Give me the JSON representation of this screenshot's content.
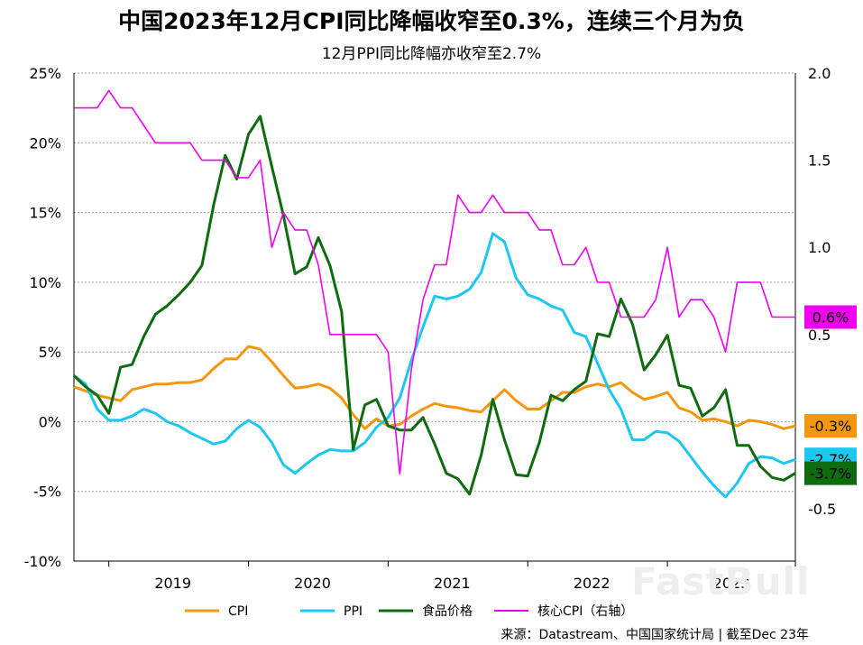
{
  "title": "中国2023年12月CPI同比降幅收窄至0.3%，连续三个月为负",
  "subtitle": "12月PPI同比降幅亦收窄至2.7%",
  "source": "来源：Datastream、中国国家统计局 | 截至Dec 23年",
  "watermark": "FastBull",
  "chart_data": {
    "type": "line",
    "x": [
      "2018-10",
      "2018-11",
      "2018-12",
      "2019-01",
      "2019-02",
      "2019-03",
      "2019-04",
      "2019-05",
      "2019-06",
      "2019-07",
      "2019-08",
      "2019-09",
      "2019-10",
      "2019-11",
      "2019-12",
      "2020-01",
      "2020-02",
      "2020-03",
      "2020-04",
      "2020-05",
      "2020-06",
      "2020-07",
      "2020-08",
      "2020-09",
      "2020-10",
      "2020-11",
      "2020-12",
      "2021-01",
      "2021-02",
      "2021-03",
      "2021-04",
      "2021-05",
      "2021-06",
      "2021-07",
      "2021-08",
      "2021-09",
      "2021-10",
      "2021-11",
      "2021-12",
      "2022-01",
      "2022-02",
      "2022-03",
      "2022-04",
      "2022-05",
      "2022-06",
      "2022-07",
      "2022-08",
      "2022-09",
      "2022-10",
      "2022-11",
      "2022-12",
      "2023-01",
      "2023-02",
      "2023-03",
      "2023-04",
      "2023-05",
      "2023-06",
      "2023-07",
      "2023-08",
      "2023-09",
      "2023-10",
      "2023-11",
      "2023-12"
    ],
    "x_tick_labels": [
      "2019",
      "2020",
      "2021",
      "2022",
      "2023"
    ],
    "left_axis": {
      "ylim": [
        -10,
        25
      ],
      "ticks": [
        "25%",
        "20%",
        "15%",
        "10%",
        "5%",
        "0%",
        "-5%",
        "-10%"
      ]
    },
    "right_axis": {
      "ylim": [
        -0.8,
        2.0
      ],
      "ticks": [
        "2.0",
        "1.5",
        "1.0",
        "0.5",
        "-0.5"
      ]
    },
    "grid": true,
    "legend_position": "bottom",
    "series": [
      {
        "name": "CPI",
        "axis": "left",
        "color": "#F5960F",
        "values": [
          2.5,
          2.2,
          1.9,
          1.7,
          1.5,
          2.3,
          2.5,
          2.7,
          2.7,
          2.8,
          2.8,
          3.0,
          3.8,
          4.5,
          4.5,
          5.4,
          5.2,
          4.3,
          3.3,
          2.4,
          2.5,
          2.7,
          2.4,
          1.7,
          0.5,
          -0.5,
          0.2,
          -0.3,
          -0.2,
          0.4,
          0.9,
          1.3,
          1.1,
          1.0,
          0.8,
          0.7,
          1.5,
          2.3,
          1.5,
          0.9,
          0.9,
          1.5,
          2.1,
          2.1,
          2.5,
          2.7,
          2.5,
          2.8,
          2.1,
          1.6,
          1.8,
          2.1,
          1.0,
          0.7,
          0.1,
          0.2,
          0.0,
          -0.3,
          0.1,
          0.0,
          -0.2,
          -0.5,
          -0.3
        ]
      },
      {
        "name": "PPI",
        "axis": "left",
        "color": "#1CC8F0",
        "values": [
          3.3,
          2.7,
          0.9,
          0.1,
          0.1,
          0.4,
          0.9,
          0.6,
          0.0,
          -0.3,
          -0.8,
          -1.2,
          -1.6,
          -1.4,
          -0.5,
          0.1,
          -0.4,
          -1.5,
          -3.1,
          -3.7,
          -3.0,
          -2.4,
          -2.0,
          -2.1,
          -2.1,
          -1.5,
          -0.4,
          0.3,
          1.7,
          4.4,
          6.8,
          9.0,
          8.8,
          9.0,
          9.5,
          10.7,
          13.5,
          12.9,
          10.3,
          9.1,
          8.8,
          8.3,
          8.0,
          6.4,
          6.1,
          4.2,
          2.3,
          0.9,
          -1.3,
          -1.3,
          -0.7,
          -0.8,
          -1.4,
          -2.5,
          -3.6,
          -4.6,
          -5.4,
          -4.4,
          -3.0,
          -2.5,
          -2.6,
          -3.0,
          -2.7
        ]
      },
      {
        "name": "食品价格",
        "axis": "left",
        "color": "#0E6B0E",
        "values": [
          3.3,
          2.5,
          1.9,
          0.6,
          3.9,
          4.1,
          6.1,
          7.7,
          8.3,
          9.1,
          10.0,
          11.2,
          15.5,
          19.1,
          17.4,
          20.6,
          21.9,
          18.3,
          14.8,
          10.6,
          11.1,
          13.2,
          11.2,
          7.9,
          -2.0,
          1.2,
          1.6,
          -0.3,
          -0.6,
          -0.6,
          0.3,
          -1.6,
          -3.7,
          -4.1,
          -5.2,
          -2.4,
          1.6,
          -1.3,
          -3.8,
          -3.9,
          -1.5,
          1.9,
          1.5,
          2.3,
          2.9,
          6.3,
          6.1,
          8.8,
          7.0,
          3.7,
          4.8,
          6.2,
          2.6,
          2.4,
          0.4,
          1.0,
          2.3,
          -1.7,
          -1.7,
          -3.2,
          -4.0,
          -4.2,
          -3.7
        ]
      },
      {
        "name": "核心CPI（右轴）",
        "axis": "right",
        "color": "#F000F0",
        "values": [
          1.8,
          1.8,
          1.8,
          1.9,
          1.8,
          1.8,
          1.7,
          1.6,
          1.6,
          1.6,
          1.6,
          1.5,
          1.5,
          1.5,
          1.4,
          1.4,
          1.5,
          1.0,
          1.2,
          1.1,
          1.1,
          0.9,
          0.5,
          0.5,
          0.5,
          0.5,
          0.5,
          0.4,
          -0.3,
          0.3,
          0.7,
          0.9,
          0.9,
          1.3,
          1.2,
          1.2,
          1.3,
          1.2,
          1.2,
          1.2,
          1.1,
          1.1,
          0.9,
          0.9,
          1.0,
          0.8,
          0.8,
          0.6,
          0.6,
          0.6,
          0.7,
          1.0,
          0.6,
          0.7,
          0.7,
          0.6,
          0.4,
          0.8,
          0.8,
          0.8,
          0.6,
          0.6,
          0.6
        ]
      }
    ],
    "end_labels": [
      {
        "series": "核心CPI（右轴）",
        "text": "0.6%",
        "color": "#F000F0",
        "text_color": "#000000"
      },
      {
        "series": "CPI",
        "text": "-0.3%",
        "color": "#F5960F",
        "text_color": "#000000"
      },
      {
        "series": "PPI",
        "text": "-2.7%",
        "color": "#1CC8F0",
        "text_color": "#000000"
      },
      {
        "series": "食品价格",
        "text": "-3.7%",
        "color": "#0E6B0E",
        "text_color": "#000000"
      }
    ]
  }
}
